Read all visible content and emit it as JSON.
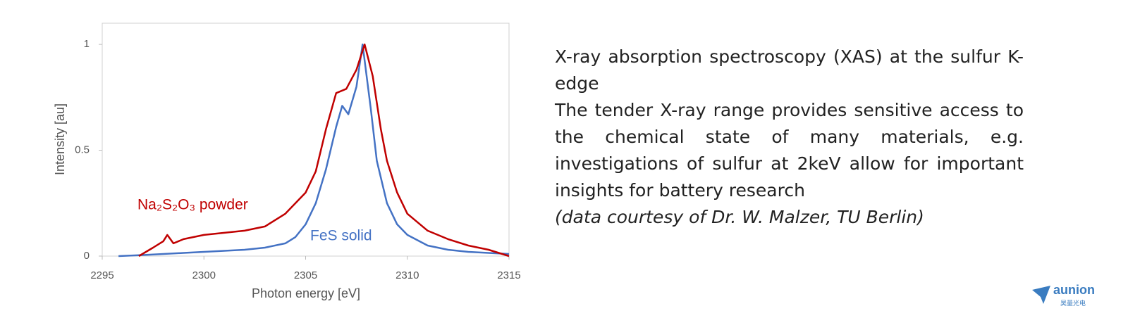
{
  "chart_data": {
    "type": "line",
    "xlabel": "Photon energy [eV]",
    "ylabel": "Intensity [au]",
    "xlim": [
      2295,
      2315
    ],
    "xticks": [
      2295,
      2300,
      2305,
      2310,
      2315
    ],
    "ylim": [
      0,
      1.1
    ],
    "yticks": [
      0,
      0.5,
      1
    ],
    "series": [
      {
        "name": "FeS solid",
        "color": "#4472c4",
        "x": [
          2295.8,
          2297,
          2298,
          2299,
          2300,
          2301,
          2302,
          2303,
          2304,
          2304.5,
          2305,
          2305.5,
          2306,
          2306.5,
          2306.8,
          2307.1,
          2307.5,
          2307.8,
          2308.2,
          2308.5,
          2309,
          2309.5,
          2310,
          2311,
          2312,
          2313,
          2314,
          2315
        ],
        "values": [
          0,
          0.005,
          0.01,
          0.015,
          0.02,
          0.025,
          0.03,
          0.04,
          0.06,
          0.09,
          0.15,
          0.25,
          0.41,
          0.61,
          0.71,
          0.67,
          0.8,
          1.0,
          0.7,
          0.45,
          0.25,
          0.15,
          0.1,
          0.05,
          0.03,
          0.02,
          0.015,
          0.01
        ]
      },
      {
        "name": "Na₂S₂O₃ powder",
        "color": "#c00000",
        "x": [
          2296.8,
          2297.5,
          2298,
          2298.2,
          2298.5,
          2299,
          2300,
          2301,
          2302,
          2303,
          2304,
          2305,
          2305.5,
          2306,
          2306.5,
          2307,
          2307.5,
          2307.9,
          2308.3,
          2308.7,
          2309,
          2309.5,
          2310,
          2311,
          2312,
          2313,
          2314,
          2315
        ],
        "values": [
          0,
          0.04,
          0.07,
          0.1,
          0.06,
          0.08,
          0.1,
          0.11,
          0.12,
          0.14,
          0.2,
          0.3,
          0.4,
          0.6,
          0.77,
          0.79,
          0.88,
          1.0,
          0.85,
          0.6,
          0.45,
          0.3,
          0.2,
          0.12,
          0.08,
          0.05,
          0.03,
          0.0
        ]
      }
    ]
  },
  "description": {
    "title": "X-ray absorption spectroscopy (XAS) at the sulfur K-edge",
    "body": "The tender X-ray range provides sensitive access to the chemical state of many materials, e.g. investigations of sulfur at 2keV allow for important insights for battery research",
    "note": "(data courtesy of Dr. W. Malzer, TU Berlin)"
  },
  "logo": {
    "brand": "aunion",
    "sub": "昊量光电"
  }
}
